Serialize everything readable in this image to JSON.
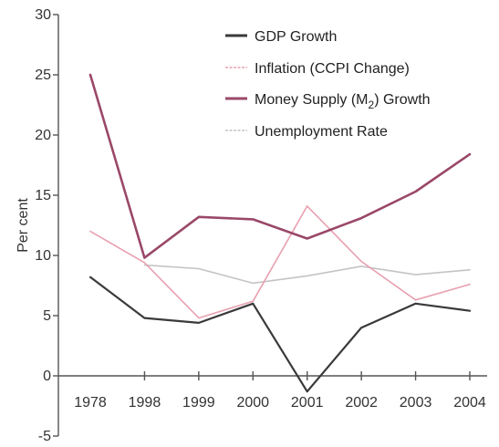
{
  "chart_data": {
    "type": "line",
    "title": "",
    "xlabel": "",
    "ylabel": "Per cent",
    "ylim": [
      -5,
      30
    ],
    "yticks": [
      -5,
      0,
      5,
      10,
      15,
      20,
      25,
      30
    ],
    "ytick_labels": [
      "-5",
      "0",
      "5",
      "10",
      "15",
      "20",
      "25",
      "30"
    ],
    "categories": [
      "1978",
      "1998",
      "1999",
      "2000",
      "2001",
      "2002",
      "2003",
      "2004"
    ],
    "grid": false,
    "legend_position": "top-right",
    "series": [
      {
        "name": "GDP Growth",
        "color": "#3a3a3a",
        "values": [
          8.2,
          4.8,
          4.4,
          6.0,
          -1.3,
          4.0,
          6.0,
          5.4
        ]
      },
      {
        "name": "Inflation (CCPI Change)",
        "color": "#e8a0b0",
        "values": [
          12.0,
          9.4,
          4.8,
          6.2,
          14.1,
          9.5,
          6.3,
          7.6
        ]
      },
      {
        "name_parts": [
          "Money Supply (M",
          "2",
          ") Growth"
        ],
        "color": "#9a4868",
        "values": [
          25.0,
          9.8,
          13.2,
          13.0,
          11.4,
          13.1,
          15.3,
          18.4
        ]
      },
      {
        "name": "Unemployment Rate",
        "color": "#c4c4c4",
        "values": [
          null,
          9.2,
          8.9,
          7.7,
          8.3,
          9.1,
          8.4,
          8.8
        ]
      }
    ]
  }
}
